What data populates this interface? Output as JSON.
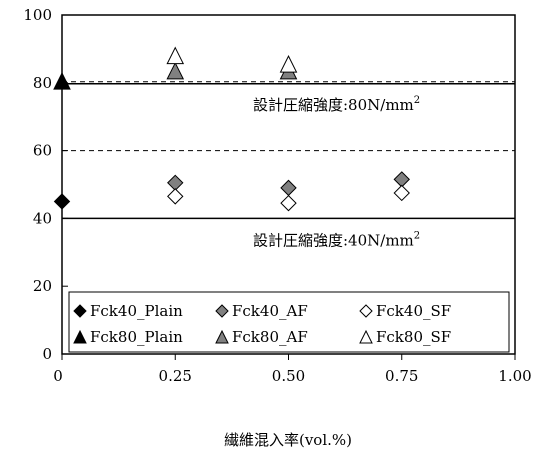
{
  "chart_data": {
    "type": "scatter",
    "title": "",
    "xlabel": "繊維混入率(vol.%)",
    "ylabel": "",
    "xlim": [
      0,
      1.0
    ],
    "ylim": [
      0,
      100
    ],
    "x_ticks": [
      0,
      0.25,
      0.5,
      0.75,
      1.0
    ],
    "x_tick_labels": [
      "0",
      "0.25",
      "0.50",
      "0.75",
      "1.00"
    ],
    "y_ticks": [
      0,
      20,
      40,
      60,
      80,
      100
    ],
    "y_tick_labels": [
      "0",
      "20",
      "40",
      "60",
      "80",
      "100"
    ],
    "grid": false,
    "legend_position": "bottom",
    "reference_lines": [
      {
        "y": 40,
        "style": "solid",
        "label": "設計圧縮強度:40N/mm",
        "superscript": "2"
      },
      {
        "y": 60,
        "style": "dashed"
      },
      {
        "y": 80,
        "style": "solid-dashed",
        "label": "設計圧縮強度:80N/mm",
        "superscript": "2"
      },
      {
        "y": 100,
        "style": "dashed"
      }
    ],
    "series": [
      {
        "name": "Fck40_Plain",
        "marker": "diamond",
        "fill": "#000000",
        "points": [
          [
            0,
            45
          ]
        ]
      },
      {
        "name": "Fck40_AF",
        "marker": "diamond",
        "fill": "#808080",
        "points": [
          [
            0.25,
            50.5
          ],
          [
            0.5,
            49
          ],
          [
            0.75,
            51.5
          ]
        ]
      },
      {
        "name": "Fck40_SF",
        "marker": "diamond",
        "fill": "#ffffff",
        "points": [
          [
            0.25,
            46.5
          ],
          [
            0.5,
            44.5
          ],
          [
            0.75,
            47.5
          ]
        ]
      },
      {
        "name": "Fck80_Plain",
        "marker": "triangle",
        "fill": "#000000",
        "points": [
          [
            0,
            80.5
          ]
        ]
      },
      {
        "name": "Fck80_AF",
        "marker": "triangle",
        "fill": "#808080",
        "points": [
          [
            0.25,
            83.5
          ],
          [
            0.5,
            83.5
          ]
        ]
      },
      {
        "name": "Fck80_SF",
        "marker": "triangle",
        "fill": "#ffffff",
        "points": [
          [
            0.25,
            88
          ],
          [
            0.5,
            85.5
          ]
        ]
      }
    ]
  }
}
